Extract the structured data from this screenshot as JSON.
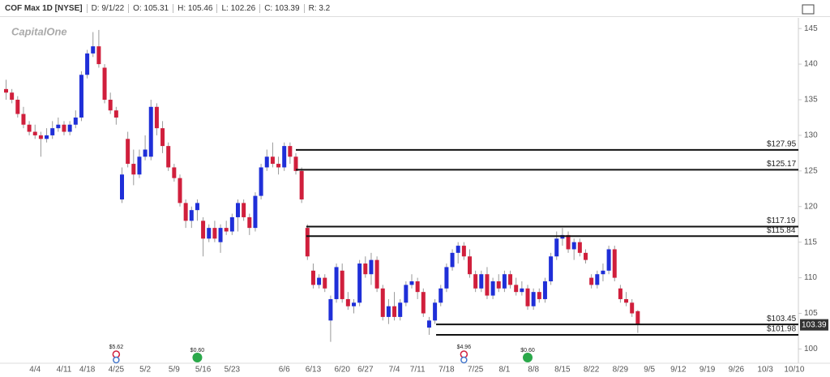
{
  "header": [
    "COF Max 1D [NYSE]",
    "D: 9/1/22",
    "O: 105.31",
    "H: 105.46",
    "L: 102.26",
    "C: 103.39",
    "R: 3.2"
  ],
  "logo": "CapitalOne",
  "chart_data": {
    "type": "candlestick",
    "up_color": "#1f2fd8",
    "down_color": "#d01f3c",
    "x": [
      "3/28",
      "3/29",
      "3/30",
      "3/31",
      "4/1",
      "4/4",
      "4/5",
      "4/6",
      "4/7",
      "4/8",
      "4/11",
      "4/12",
      "4/13",
      "4/14",
      "4/18",
      "4/19",
      "4/20",
      "4/21",
      "4/22",
      "4/25",
      "4/26",
      "4/27",
      "4/28",
      "4/29",
      "5/2",
      "5/3",
      "5/4",
      "5/5",
      "5/6",
      "5/9",
      "5/10",
      "5/11",
      "5/12",
      "5/13",
      "5/16",
      "5/17",
      "5/18",
      "5/19",
      "5/20",
      "5/23",
      "5/24",
      "5/25",
      "5/26",
      "5/27",
      "5/31",
      "6/1",
      "6/2",
      "6/3",
      "6/6",
      "6/7",
      "6/8",
      "6/9",
      "6/10",
      "6/13",
      "6/14",
      "6/15",
      "6/16",
      "6/17",
      "6/21",
      "6/22",
      "6/23",
      "6/24",
      "6/27",
      "6/28",
      "6/29",
      "6/30",
      "7/1",
      "7/5",
      "7/6",
      "7/7",
      "7/8",
      "7/11",
      "7/12",
      "7/13",
      "7/14",
      "7/15",
      "7/18",
      "7/19",
      "7/20",
      "7/21",
      "7/22",
      "7/25",
      "7/26",
      "7/27",
      "7/28",
      "7/29",
      "8/1",
      "8/2",
      "8/3",
      "8/4",
      "8/5",
      "8/8",
      "8/9",
      "8/10",
      "8/11",
      "8/12",
      "8/15",
      "8/16",
      "8/17",
      "8/18",
      "8/19",
      "8/22",
      "8/23",
      "8/24",
      "8/25",
      "8/26",
      "8/29",
      "8/30",
      "8/31",
      "9/1"
    ],
    "ohlc": [
      [
        136.5,
        137.8,
        135,
        136
      ],
      [
        136,
        136.5,
        134.5,
        135
      ],
      [
        135,
        135.5,
        132.5,
        133
      ],
      [
        133,
        134,
        131,
        131.5
      ],
      [
        131.5,
        132,
        130,
        130.5
      ],
      [
        130.5,
        131.5,
        129.5,
        130
      ],
      [
        130,
        130.5,
        127,
        129.5
      ],
      [
        129.5,
        131,
        129,
        130
      ],
      [
        130,
        132,
        129.5,
        131
      ],
      [
        131,
        132.5,
        130.5,
        131.5
      ],
      [
        131.5,
        132,
        130,
        130.5
      ],
      [
        130.5,
        132,
        130,
        131.5
      ],
      [
        131.5,
        133.5,
        131,
        132.5
      ],
      [
        132.5,
        139,
        132,
        138.5
      ],
      [
        138.5,
        142,
        138,
        141.5
      ],
      [
        141.5,
        144.5,
        141,
        142.5
      ],
      [
        142.5,
        144.8,
        139.5,
        140
      ],
      [
        139.5,
        140,
        134.5,
        135
      ],
      [
        135,
        136,
        133,
        133.5
      ],
      [
        133.5,
        134,
        131.5,
        132.5
      ],
      [
        121,
        125.5,
        120.5,
        124.5
      ],
      [
        129.5,
        130.5,
        125.5,
        126
      ],
      [
        126,
        128,
        123,
        124.5
      ],
      [
        124.5,
        128,
        124,
        127
      ],
      [
        127,
        130,
        126.5,
        128
      ],
      [
        127,
        135,
        126.5,
        134
      ],
      [
        134,
        134.5,
        130,
        131
      ],
      [
        131,
        132,
        127.5,
        128.5
      ],
      [
        128.5,
        129,
        125,
        125.5
      ],
      [
        125.5,
        126,
        123.5,
        124
      ],
      [
        124,
        124.5,
        120,
        120.5
      ],
      [
        120.5,
        121,
        117,
        118
      ],
      [
        118,
        120,
        117,
        119.5
      ],
      [
        119.5,
        121,
        118,
        120.5
      ],
      [
        118,
        118.5,
        113,
        115.5
      ],
      [
        115.5,
        117.5,
        115,
        117
      ],
      [
        117,
        118,
        115,
        115.5
      ],
      [
        115,
        117.5,
        113.5,
        117
      ],
      [
        117,
        118,
        116,
        116.5
      ],
      [
        116.5,
        119,
        116,
        118.5
      ],
      [
        118.5,
        121,
        116.5,
        120.5
      ],
      [
        120.5,
        121,
        118,
        118.5
      ],
      [
        118.5,
        119,
        116,
        117
      ],
      [
        117,
        122,
        116.5,
        121.5
      ],
      [
        121.5,
        126,
        121,
        125.5
      ],
      [
        125.5,
        128,
        125,
        127
      ],
      [
        127,
        129,
        125.5,
        126
      ],
      [
        126,
        127,
        124.5,
        125.5
      ],
      [
        125.5,
        129,
        125,
        128.5
      ],
      [
        128.5,
        129,
        126,
        127
      ],
      [
        127,
        127.5,
        124.5,
        125
      ],
      [
        125,
        125.5,
        120.5,
        121
      ],
      [
        117,
        117.5,
        112.5,
        113
      ],
      [
        111,
        112,
        108.5,
        109
      ],
      [
        109,
        110.5,
        108.5,
        110
      ],
      [
        110,
        110.5,
        108,
        108.5
      ],
      [
        104,
        107.5,
        101,
        107
      ],
      [
        107,
        112,
        106.5,
        111.5
      ],
      [
        111,
        112,
        106.5,
        107
      ],
      [
        107,
        108,
        105.5,
        106
      ],
      [
        106,
        107,
        105,
        106.5
      ],
      [
        106.5,
        112.5,
        106,
        112
      ],
      [
        112,
        113,
        110,
        110.5
      ],
      [
        110.5,
        113.5,
        109,
        112.5
      ],
      [
        112.5,
        113,
        108,
        108.5
      ],
      [
        108.5,
        109,
        104,
        104.5
      ],
      [
        104.5,
        107,
        103.5,
        106
      ],
      [
        106,
        108,
        104,
        104.5
      ],
      [
        104.5,
        107,
        104,
        106.5
      ],
      [
        106.5,
        109.5,
        106,
        109
      ],
      [
        109,
        110.5,
        108.5,
        109.5
      ],
      [
        109.5,
        110,
        107,
        108
      ],
      [
        108,
        108.5,
        104.5,
        105
      ],
      [
        103,
        104.5,
        101.98,
        104
      ],
      [
        104,
        107,
        103.5,
        106.5
      ],
      [
        106.5,
        109,
        106,
        108.5
      ],
      [
        108.5,
        112,
        108,
        111.5
      ],
      [
        111.5,
        114,
        111,
        113.5
      ],
      [
        113.5,
        115,
        112,
        114.5
      ],
      [
        114.5,
        115,
        112.5,
        113
      ],
      [
        113,
        114,
        110,
        110.5
      ],
      [
        110.5,
        111,
        108,
        108.5
      ],
      [
        108.5,
        111,
        108,
        110.5
      ],
      [
        110.5,
        111.5,
        107,
        107.5
      ],
      [
        107.5,
        110,
        107,
        109.5
      ],
      [
        109.5,
        110.5,
        108,
        108.5
      ],
      [
        108.5,
        111,
        108,
        110.5
      ],
      [
        110.5,
        111,
        108.5,
        109
      ],
      [
        109,
        110,
        107.5,
        108
      ],
      [
        108,
        109.5,
        107.5,
        108.5
      ],
      [
        108.5,
        109,
        105.5,
        106
      ],
      [
        106,
        108.5,
        105.5,
        108
      ],
      [
        108,
        108.5,
        106.5,
        107
      ],
      [
        107,
        110,
        106.5,
        109.5
      ],
      [
        109.5,
        113.5,
        109,
        113
      ],
      [
        113,
        116.5,
        112.5,
        115.5
      ],
      [
        115.5,
        117,
        114.5,
        116
      ],
      [
        116,
        116.5,
        113.5,
        114
      ],
      [
        114,
        115.5,
        112.5,
        115
      ],
      [
        115,
        115.5,
        113,
        113.5
      ],
      [
        113.5,
        114,
        112,
        112.5
      ],
      [
        110,
        110.5,
        108.5,
        109
      ],
      [
        109,
        111,
        108.5,
        110.5
      ],
      [
        110.5,
        112,
        109.5,
        111
      ],
      [
        111,
        114.5,
        110.5,
        114
      ],
      [
        114,
        114.5,
        109.5,
        110
      ],
      [
        108.5,
        109,
        106.5,
        107
      ],
      [
        107,
        108,
        106,
        106.5
      ],
      [
        106.5,
        107,
        104.5,
        105
      ],
      [
        105.31,
        105.46,
        102.26,
        103.39
      ]
    ],
    "ylim": [
      98,
      146.5
    ],
    "yticks": [
      100,
      105,
      110,
      115,
      120,
      125,
      130,
      135,
      140,
      145
    ],
    "xticks": [
      "4/4",
      "4/11",
      "4/18",
      "4/25",
      "5/2",
      "5/9",
      "5/16",
      "5/23",
      "6/6",
      "6/13",
      "6/20",
      "6/27",
      "7/4",
      "7/11",
      "7/18",
      "7/25",
      "8/1",
      "8/8",
      "8/15",
      "8/22",
      "8/29",
      "9/5",
      "9/12",
      "9/19",
      "9/26",
      "10/3",
      "10/10"
    ],
    "levels": [
      {
        "value": 127.95,
        "label": "$127.95"
      },
      {
        "value": 125.17,
        "label": "$125.17"
      },
      {
        "value": 117.19,
        "label": "$117.19"
      },
      {
        "value": 115.84,
        "label": "$115.84"
      },
      {
        "value": 103.45,
        "label": "$103.45"
      },
      {
        "value": 101.98,
        "label": "$101.98"
      }
    ],
    "events": [
      {
        "kind": "earnings",
        "label": "$5.62"
      },
      {
        "kind": "dividend",
        "label": "$0.60"
      },
      {
        "kind": "earnings",
        "label": "$4.96"
      },
      {
        "kind": "dividend",
        "label": "$0.60"
      }
    ]
  }
}
